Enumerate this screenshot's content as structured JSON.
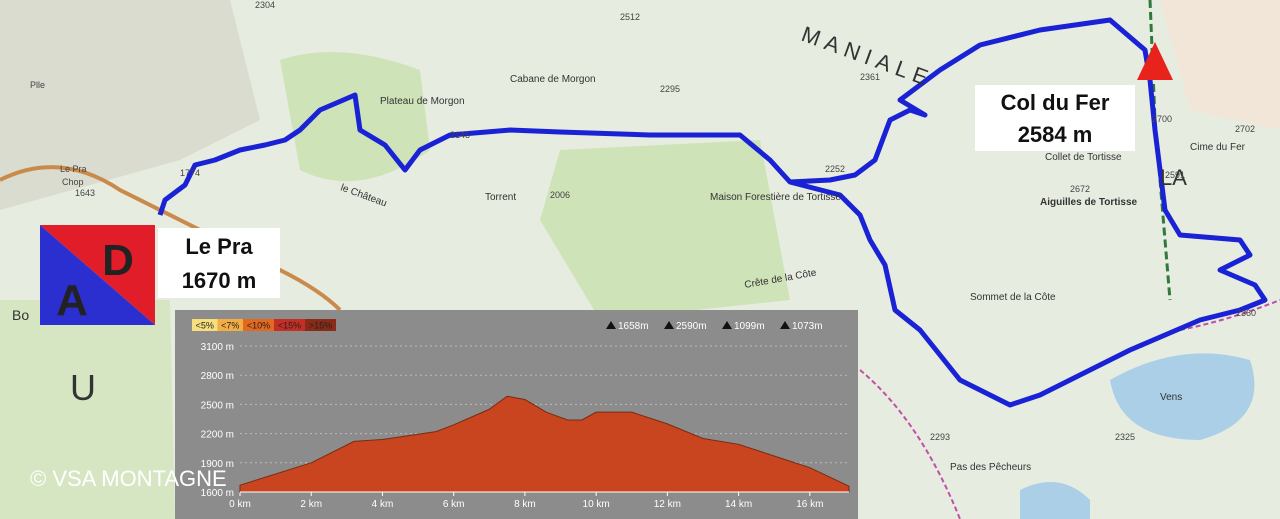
{
  "map": {
    "labels": [
      "MANIALE",
      "Plateau de Morgon",
      "Cabane de Morgon",
      "Maison Forestière de Tortisse",
      "Crête de la Côte",
      "Sommet de la Côte",
      "Aiguilles de Tortisse",
      "Cime du Fer",
      "Collet de Tortisse",
      "le Château",
      "Torrent",
      "Pas des Pêcheurs",
      "Vens",
      "LA",
      "U",
      "Bo",
      "Plle",
      "Le Pra",
      "Chop",
      "2304",
      "2512",
      "2295",
      "2145",
      "2006",
      "2252",
      "2672",
      "2700",
      "2702",
      "2591",
      "2360",
      "2293",
      "2325",
      "1774",
      "1643",
      "2361"
    ],
    "logo": [
      "D",
      "A"
    ],
    "start": {
      "name": "Le Pra",
      "altitude": "1670 m"
    },
    "summit": {
      "name": "Col du Fer",
      "altitude": "2584 m"
    },
    "copyright": "© VSA MONTAGNE"
  },
  "chart_data": {
    "type": "area",
    "legend": [
      {
        "label": "<5%",
        "color": "#f6df7c"
      },
      {
        "label": "<7%",
        "color": "#f2ad45"
      },
      {
        "label": "<10%",
        "color": "#e2691f"
      },
      {
        "label": "<15%",
        "color": "#c52e25"
      },
      {
        "label": ">15%",
        "color": "#8a2b17"
      }
    ],
    "stats": [
      "1658m",
      "2590m",
      "1099m",
      "1073m"
    ],
    "x": [
      0,
      2,
      3.2,
      4,
      5.5,
      6,
      7,
      7.5,
      8,
      8.6,
      9.2,
      9.6,
      10,
      10.5,
      11,
      12,
      13,
      14,
      15,
      16,
      17.1
    ],
    "values": [
      1670,
      1900,
      2120,
      2140,
      2220,
      2290,
      2450,
      2584,
      2550,
      2420,
      2340,
      2340,
      2420,
      2420,
      2420,
      2300,
      2150,
      2090,
      1970,
      1850,
      1660
    ],
    "color": "#c8451f",
    "xlim": [
      0,
      17.1
    ],
    "ylim": [
      1600,
      3100
    ],
    "xticks": [
      {
        "value": 0,
        "label": "0 km"
      },
      {
        "value": 2,
        "label": "2 km"
      },
      {
        "value": 4,
        "label": "4 km"
      },
      {
        "value": 6,
        "label": "6 km"
      },
      {
        "value": 8,
        "label": "8 km"
      },
      {
        "value": 10,
        "label": "10 km"
      },
      {
        "value": 12,
        "label": "12 km"
      },
      {
        "value": 14,
        "label": "14 km"
      },
      {
        "value": 16,
        "label": "16 km"
      }
    ],
    "yticks": [
      {
        "value": 1600,
        "label": "1600 m"
      },
      {
        "value": 1900,
        "label": "1900 m"
      },
      {
        "value": 2200,
        "label": "2200 m"
      },
      {
        "value": 2500,
        "label": "2500 m"
      },
      {
        "value": 2800,
        "label": "2800 m"
      },
      {
        "value": 3100,
        "label": "3100 m"
      }
    ],
    "grid": true
  }
}
